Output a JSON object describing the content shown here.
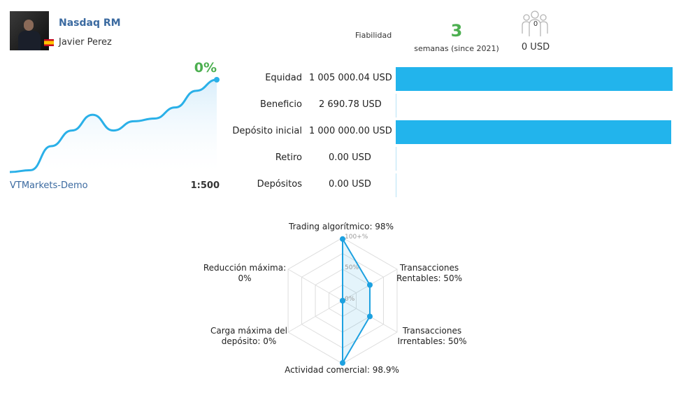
{
  "signal": {
    "name": "Nasdaq RM",
    "author": "Javier Perez"
  },
  "reliability": {
    "label": "Fiabilidad",
    "weeks": "3",
    "weeks_label": "semanas (since 2021)"
  },
  "subscribers": {
    "count": "0",
    "amount": "0 USD",
    "icon": "people-icon"
  },
  "growth": {
    "value": "0%",
    "broker": "VTMarkets-Demo",
    "leverage": "1:500",
    "color": "#2ab0e8",
    "curve": [
      0.0,
      0.02,
      0.28,
      0.45,
      0.62,
      0.45,
      0.55,
      0.58,
      0.7,
      0.88,
      1.0
    ]
  },
  "stats": [
    {
      "label": "Equidad",
      "value": "1 005 000.04 USD",
      "fraction": 1.0
    },
    {
      "label": "Beneficio",
      "value": "2 690.78 USD",
      "fraction": 0.0
    },
    {
      "label": "Depósito inicial",
      "value": "1 000 000.00 USD",
      "fraction": 0.995
    },
    {
      "label": "Retiro",
      "value": "0.00 USD",
      "fraction": 0.0
    },
    {
      "label": "Depósitos",
      "value": "0.00 USD",
      "fraction": 0.0
    }
  ],
  "radar": {
    "scale": [
      "100+%",
      "50%",
      "0%"
    ],
    "axes": [
      {
        "label_line1": "Trading algorítmico: 98%",
        "label_line2": "",
        "value": 0.98
      },
      {
        "label_line1": "Transacciones",
        "label_line2": "Rentables: 50%",
        "value": 0.5
      },
      {
        "label_line1": "Transacciones",
        "label_line2": "Irrentables: 50%",
        "value": 0.5
      },
      {
        "label_line1": "Actividad comercial: 98.9%",
        "label_line2": "",
        "value": 0.989
      },
      {
        "label_line1": "Carga máxima del",
        "label_line2": "depósito: 0%",
        "value": 0.0
      },
      {
        "label_line1": "Reducción máxima:",
        "label_line2": "0%",
        "value": 0.0
      }
    ],
    "color": "#1da1e0"
  },
  "colors": {
    "accent": "#22b4ec",
    "positive": "#4caf50",
    "link": "#3b6aa0"
  }
}
